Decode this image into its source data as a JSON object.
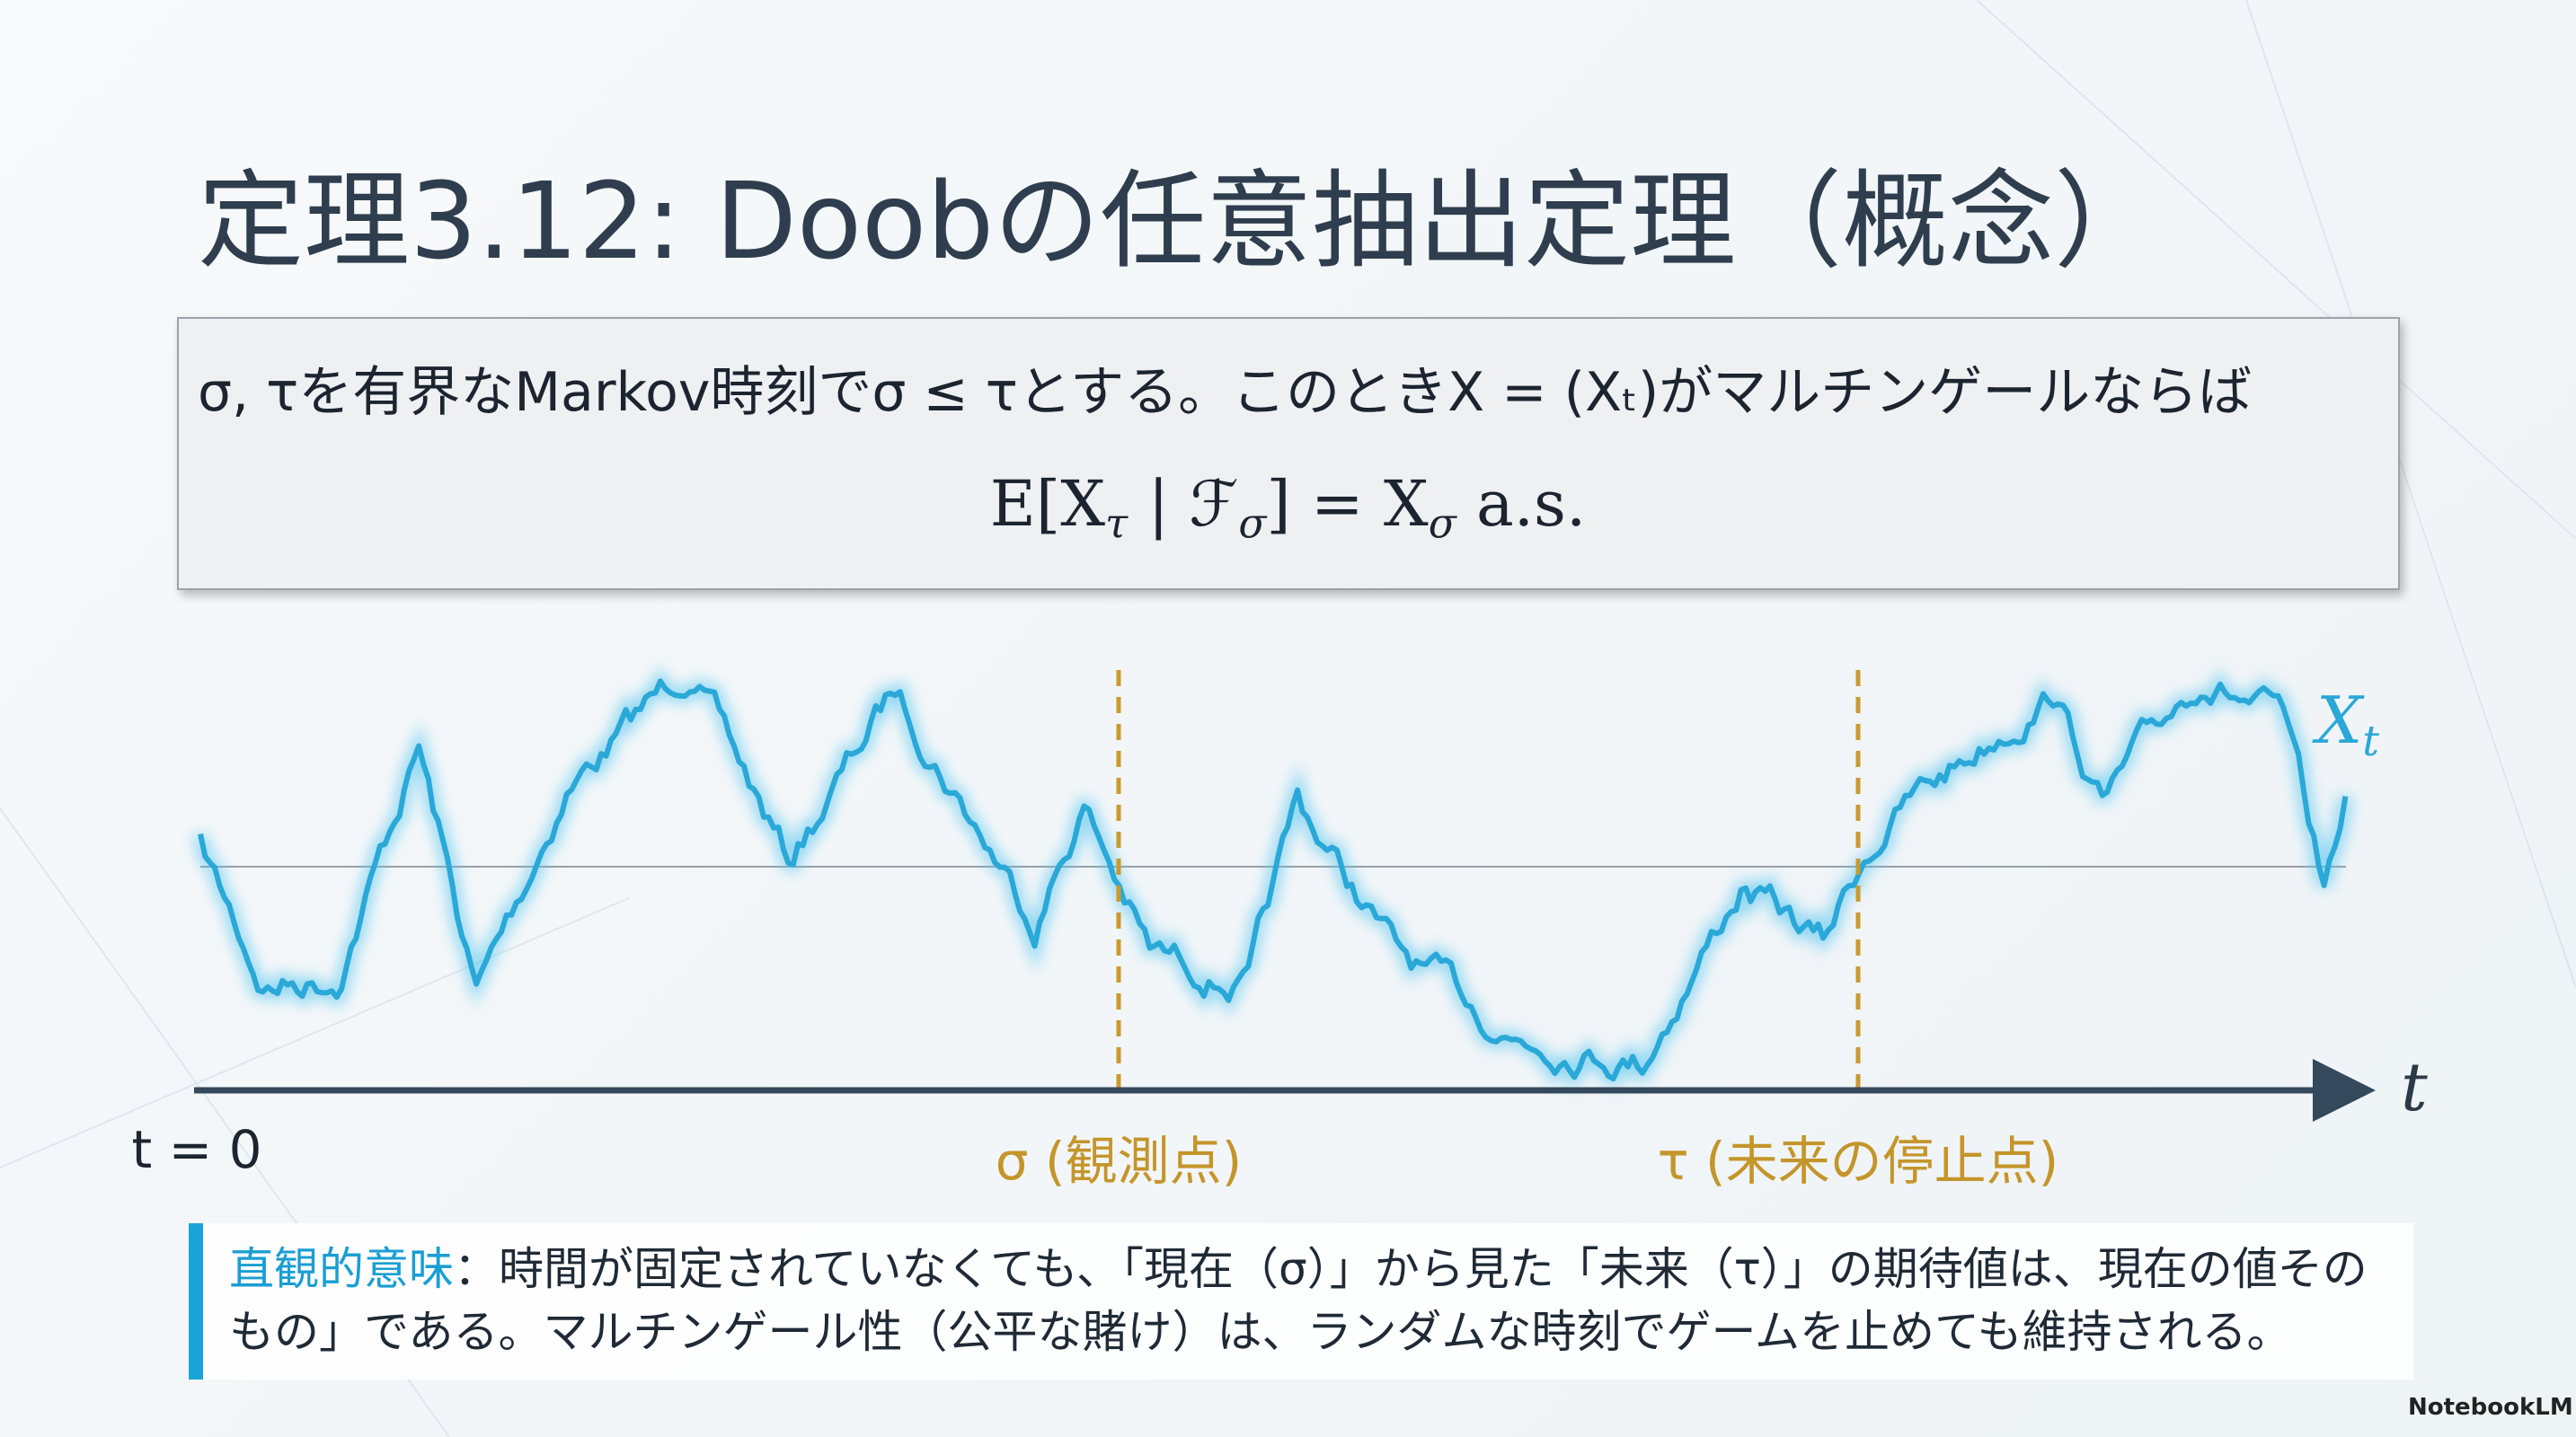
{
  "title": "定理3.12: Doobの任意抽出定理（概念）",
  "theorem": {
    "statement": "σ, τを有界なMarkov時刻でσ ≤ τとする。このときX = (Xₜ)がマルチンゲールならば",
    "formula": [
      "E[X",
      "τ",
      " | ",
      "ℱ",
      "σ",
      "] = X",
      "σ",
      " a.s."
    ]
  },
  "diagram": {
    "origin_label": "t = 0",
    "sigma_label": "σ (観測点)",
    "tau_label": "τ (未来の停止点)",
    "process_label": [
      "X",
      "t"
    ],
    "axis_label": "t"
  },
  "note": {
    "heading": "直観的意味",
    "text": "：時間が固定されていなくても、「現在（σ）」から見た「未来（τ）」の期待値は、現在の値そのもの」である。マルチンゲール性（公平な賭け）は、ランダムな時刻でゲームを止めても維持される。"
  },
  "watermark": "NotebookLM"
}
